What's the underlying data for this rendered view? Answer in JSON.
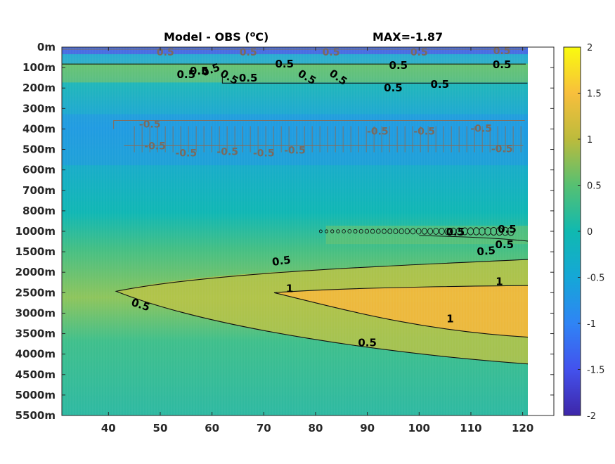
{
  "chart_data": {
    "type": "heatmap",
    "title": "Model - OBS (",
    "title_superscript": "o",
    "title_unit": "C)",
    "annotation": "MAX=-1.87",
    "x_ticks": [
      40,
      50,
      60,
      70,
      80,
      90,
      100,
      110,
      120
    ],
    "x_range": [
      31,
      121
    ],
    "y_tick_labels": [
      "0m",
      "100m",
      "200m",
      "300m",
      "400m",
      "500m",
      "600m",
      "700m",
      "800m",
      "1000m",
      "1500m",
      "2000m",
      "2500m",
      "3000m",
      "3500m",
      "4000m",
      "4500m",
      "5000m",
      "5500m"
    ],
    "colorbar": {
      "range": [
        -2,
        2
      ],
      "ticks": [
        "2",
        "1.5",
        "1",
        "0.5",
        "0",
        "-0.5",
        "-1",
        "-1.5",
        "-2"
      ],
      "colormap": "parula"
    },
    "contour_levels": [
      -0.5,
      0.5,
      1
    ],
    "contour_labels": {
      "upper": [
        "0.5",
        "0.5",
        "0.5",
        "0.5",
        "0.5",
        "0.5",
        "0.5",
        "0.5",
        "0.5",
        "0.5",
        "0.5",
        "0.5"
      ],
      "mid": [
        "-0.5",
        "-0.5",
        "-0.5",
        "-0.5",
        "-0.5",
        "-0.5",
        "-0.5",
        "-0.5",
        "-0.5",
        "-0.5"
      ],
      "deep": [
        "0.5",
        "0.5",
        "0.5",
        "0.5",
        "0.5",
        "0.5",
        "1",
        "1",
        "1"
      ]
    },
    "regions": [
      {
        "lat_range": [
          31,
          121
        ],
        "depth_range": [
          "2000m",
          "4000m"
        ],
        "anomaly": 0.7
      },
      {
        "lat_range": [
          80,
          121
        ],
        "depth_range": [
          "2500m",
          "3000m"
        ],
        "anomaly": 1.2
      },
      {
        "lat_range": [
          31,
          121
        ],
        "depth_range": [
          "300m",
          "700m"
        ],
        "anomaly": -0.5
      },
      {
        "lat_range": [
          31,
          121
        ],
        "depth_range": [
          "0m",
          "100m"
        ],
        "anomaly": -1.0
      },
      {
        "lat_range": [
          31,
          121
        ],
        "depth_range": [
          "100m",
          "200m"
        ],
        "anomaly": 0.5
      }
    ]
  }
}
